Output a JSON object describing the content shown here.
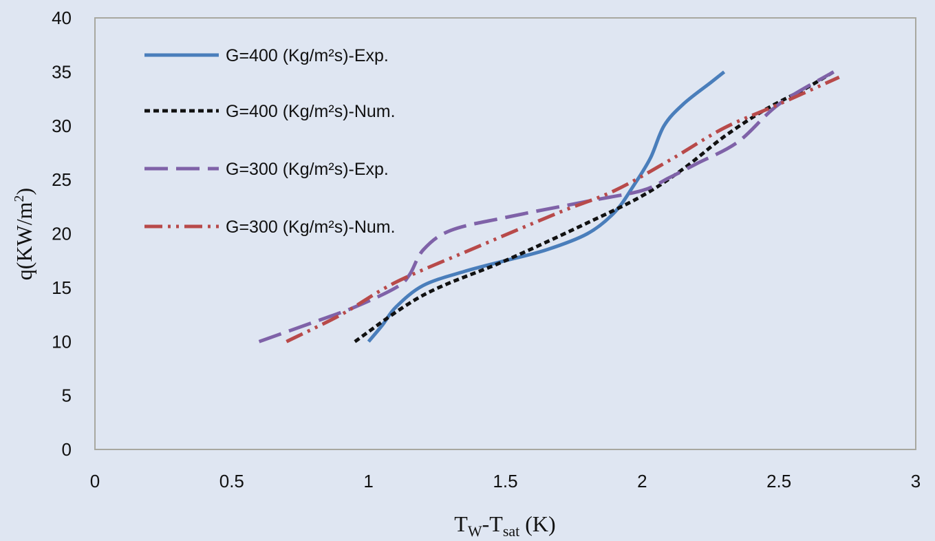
{
  "chart_data": {
    "type": "line",
    "title": "",
    "xlabel": {
      "main": "T",
      "sub1": "W",
      "mid": "-T",
      "sub2": "sat",
      "unit": " (K)"
    },
    "ylabel": {
      "main": "q(KW/m",
      "sup": "2",
      "close": ")"
    },
    "xlim": [
      0,
      3
    ],
    "ylim": [
      0,
      40
    ],
    "x_ticks": [
      "0",
      "0.5",
      "1",
      "1.5",
      "2",
      "2.5",
      "3"
    ],
    "y_ticks": [
      "0",
      "5",
      "10",
      "15",
      "20",
      "25",
      "30",
      "35",
      "40"
    ],
    "grid": false,
    "legend_position": "top-left",
    "series": [
      {
        "name": "G=400 (Kg/m²s)-Exp.",
        "color": "#4a7ebb",
        "style": "solid",
        "x": [
          1.0,
          1.05,
          1.1,
          1.2,
          1.35,
          1.5,
          1.65,
          1.8,
          1.9,
          1.97,
          2.03,
          2.08,
          2.15,
          2.25,
          2.3
        ],
        "y": [
          10,
          11.5,
          13.2,
          15.2,
          16.5,
          17.5,
          18.5,
          20.0,
          22.0,
          24.5,
          27.0,
          30.0,
          32.0,
          34.0,
          35.0
        ]
      },
      {
        "name": "G=400 (Kg/m²s)-Num.",
        "color": "#111111",
        "style": "dotted",
        "x": [
          0.95,
          1.2,
          1.5,
          1.8,
          2.0,
          2.15,
          2.3,
          2.45,
          2.6,
          2.7
        ],
        "y": [
          10,
          14.3,
          17.5,
          21.0,
          23.5,
          26.0,
          29.0,
          31.5,
          33.5,
          35.0
        ]
      },
      {
        "name": "G=300 (Kg/m²s)-Exp.",
        "color": "#7f62a8",
        "style": "longdash",
        "x": [
          0.6,
          0.8,
          0.95,
          1.1,
          1.15,
          1.2,
          1.3,
          1.5,
          1.8,
          2.0,
          2.1,
          2.2,
          2.35,
          2.5,
          2.7
        ],
        "y": [
          10,
          11.8,
          13.2,
          15.0,
          16.2,
          18.5,
          20.3,
          21.5,
          23.0,
          24.0,
          25.2,
          26.5,
          28.5,
          32.0,
          35.0
        ]
      },
      {
        "name": "G=300 (Kg/m²s)-Num.",
        "color": "#b84a4a",
        "style": "dashdotdot",
        "x": [
          0.7,
          0.9,
          1.1,
          1.4,
          1.7,
          1.9,
          2.1,
          2.3,
          2.5,
          2.72
        ],
        "y": [
          10,
          12.5,
          15.5,
          18.8,
          22.0,
          24.0,
          26.8,
          29.8,
          32.0,
          34.5
        ]
      }
    ]
  }
}
